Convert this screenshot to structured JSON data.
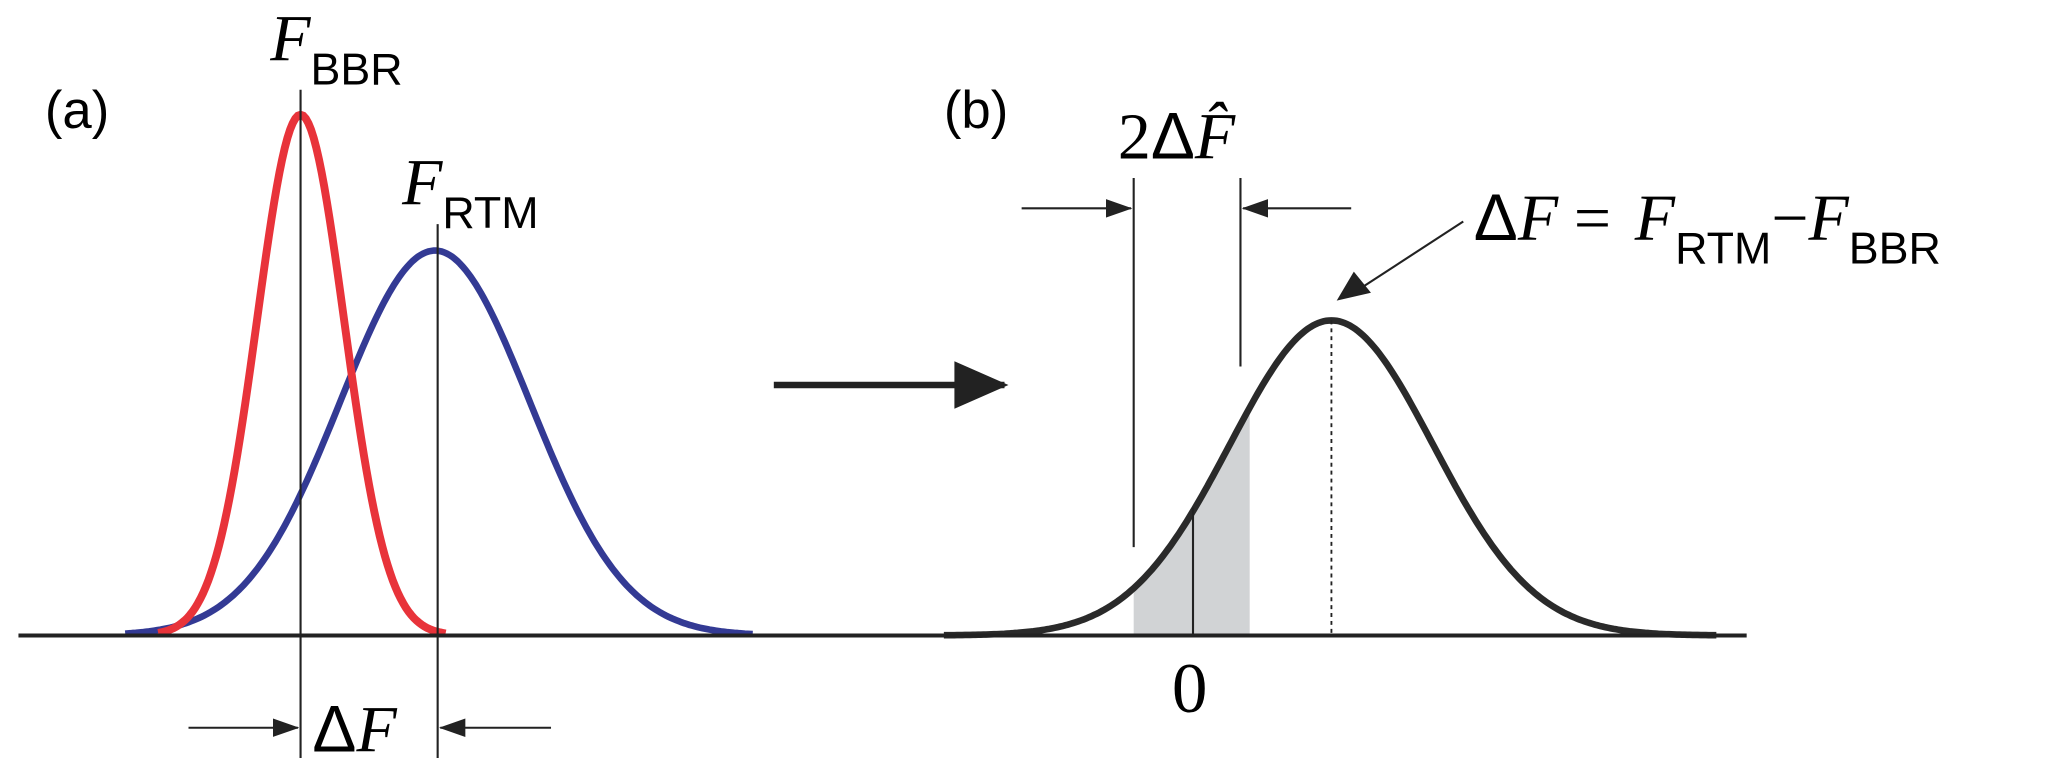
{
  "panels": [
    {
      "label": "(a)"
    },
    {
      "label": "(b)"
    }
  ],
  "annotations": {
    "f_bbr": {
      "symbol": "F",
      "sub": "BBR"
    },
    "f_rtm": {
      "symbol": "F",
      "sub": "RTM"
    },
    "delta_f": {
      "delta": "Δ",
      "symbol": "F"
    },
    "width": {
      "coef": "2",
      "delta": "Δ",
      "symbol": "F̂"
    },
    "equation": {
      "delta": "Δ",
      "lhs": "F",
      "eq": "=",
      "t1": "F",
      "t1_sub": "RTM",
      "minus": "−",
      "t2": "F",
      "t2_sub": "BBR"
    },
    "zero": "0"
  }
}
